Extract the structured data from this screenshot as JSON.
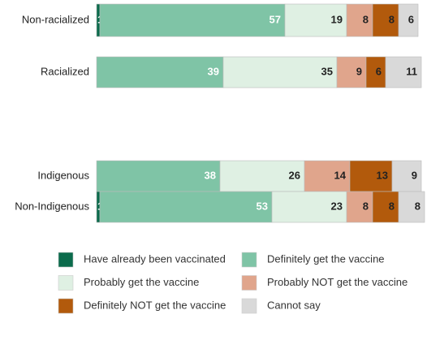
{
  "chart_data": {
    "type": "stacked-bar-horizontal",
    "categories": [
      "Non-racialized",
      "Racialized",
      "Indigenous",
      "Non-Indigenous"
    ],
    "series": [
      {
        "name": "Have already been vaccinated",
        "color": "#0b6b4c",
        "values": [
          1,
          null,
          null,
          1
        ]
      },
      {
        "name": "Definitely get the vaccine",
        "color": "#7fc4a6",
        "values": [
          57,
          39,
          38,
          53
        ]
      },
      {
        "name": "Probably get the vaccine",
        "color": "#dff0e3",
        "values": [
          19,
          35,
          26,
          23
        ]
      },
      {
        "name": "Probably NOT get the vaccine",
        "color": "#e0a58c",
        "values": [
          8,
          9,
          14,
          8
        ]
      },
      {
        "name": "Definitely NOT get the vaccine",
        "color": "#b25a0c",
        "values": [
          8,
          6,
          13,
          8
        ]
      },
      {
        "name": "Cannot say",
        "color": "#d9d9d9",
        "values": [
          6,
          11,
          9,
          8
        ]
      }
    ]
  }
}
